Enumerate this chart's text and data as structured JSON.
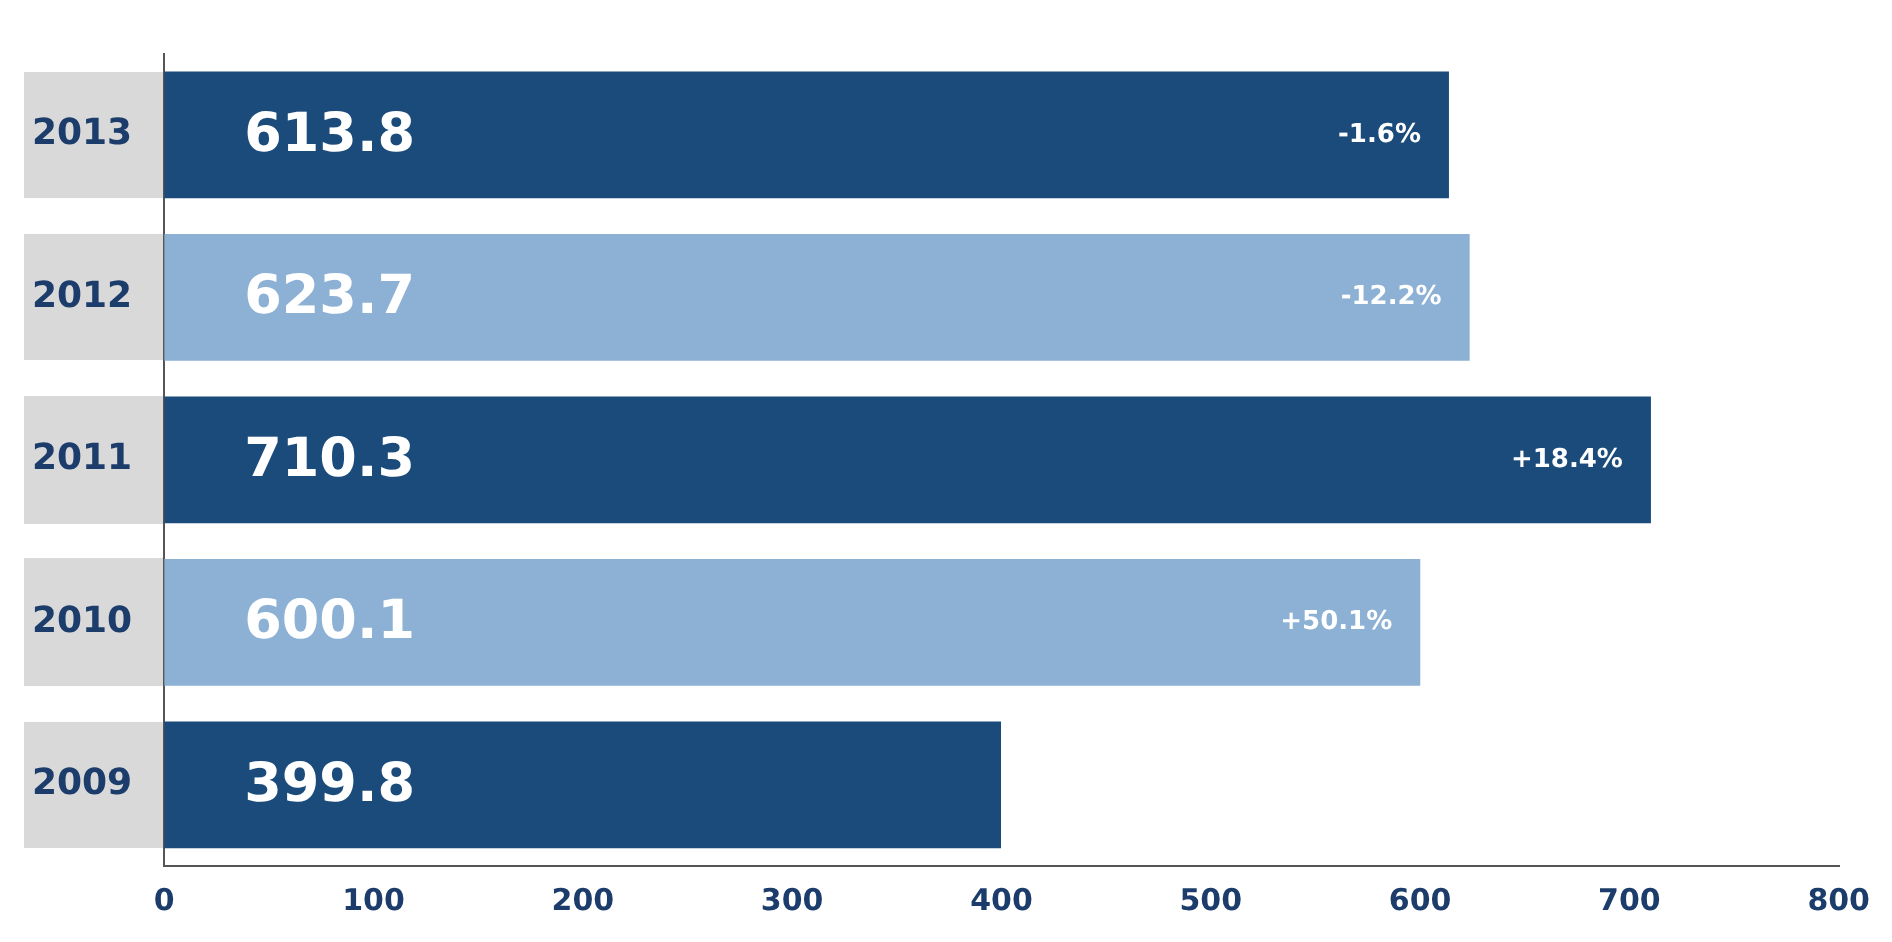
{
  "chart_data": {
    "type": "bar",
    "orientation": "horizontal",
    "categories": [
      "2013",
      "2012",
      "2011",
      "2010",
      "2009"
    ],
    "values": [
      613.8,
      623.7,
      710.3,
      600.1,
      399.8
    ],
    "colors": [
      "#1b4b7b",
      "#8cb1d5",
      "#1b4b7b",
      "#8cb1d5",
      "#1b4b7b"
    ],
    "xlim": [
      0,
      800
    ],
    "xticks": [
      0,
      100,
      200,
      300,
      400,
      500,
      600,
      700,
      800
    ],
    "data_labels": true,
    "grid": false,
    "legend": false,
    "annotations": [
      {
        "text": "-1.6%",
        "x": 613.8,
        "y": "2013"
      },
      {
        "text": "-12.2%",
        "x": 623.7,
        "y": "2012"
      },
      {
        "text": "+18.4%",
        "x": 710.3,
        "y": "2011"
      },
      {
        "text": "+50.1%",
        "x": 600.1,
        "y": "2010"
      }
    ]
  }
}
